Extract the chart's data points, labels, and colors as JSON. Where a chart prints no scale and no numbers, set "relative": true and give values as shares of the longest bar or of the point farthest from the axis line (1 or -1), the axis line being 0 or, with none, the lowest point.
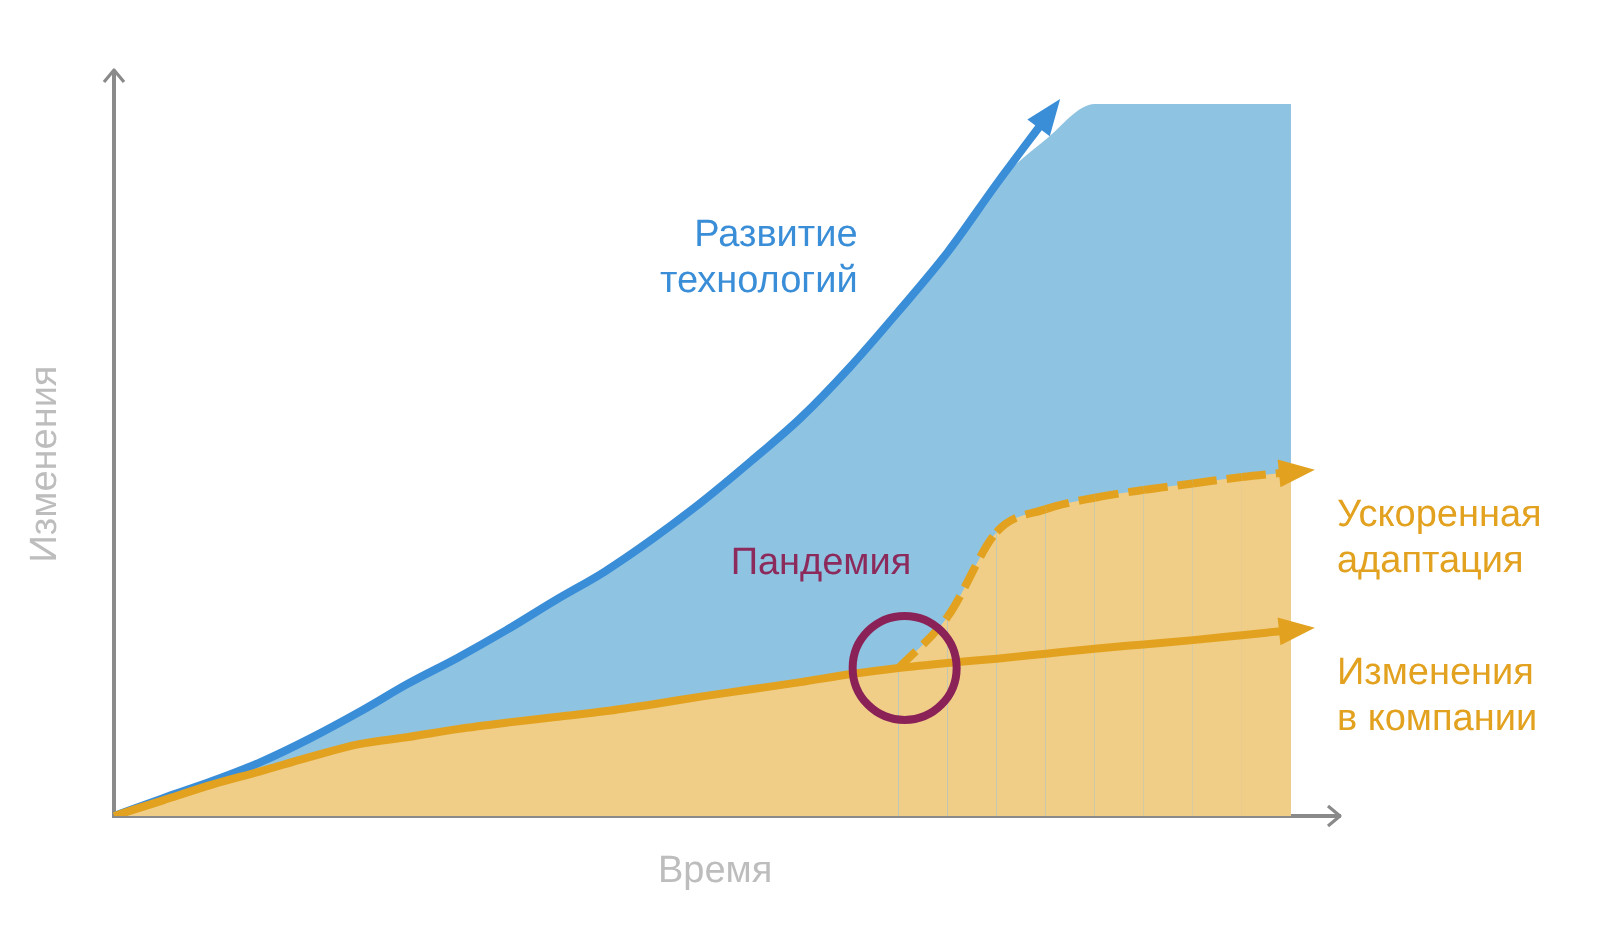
{
  "chart_data": {
    "type": "line",
    "xlabel": "Время",
    "ylabel": "Изменения",
    "relative": true,
    "legend": false,
    "grid": false,
    "marker": "none",
    "categories": [
      null,
      null,
      null,
      null,
      null,
      null,
      null,
      null,
      null,
      null,
      null,
      null,
      null,
      null,
      null,
      null,
      null,
      null,
      null,
      null,
      null,
      null,
      null,
      null,
      null,
      null
    ],
    "annotations": [
      "Пандемия"
    ],
    "series": [
      {
        "type": "area",
        "color": "#8fc3e2",
        "values": [
          0,
          0.025,
          0.049,
          0.076,
          0.109,
          0.146,
          0.186,
          0.222,
          0.261,
          0.303,
          0.343,
          0.39,
          0.442,
          0.499,
          0.559,
          0.63,
          0.709,
          0.792,
          0.888,
          0.95,
          1,
          1,
          1,
          1,
          1,
          null
        ]
      },
      {
        "type": "area",
        "color": "#f0ce88",
        "values": [
          0,
          0.022,
          0.044,
          0.063,
          0.083,
          0.101,
          0.111,
          0.122,
          0.131,
          0.139,
          0.147,
          0.157,
          0.168,
          0.178,
          0.188,
          0.199,
          0.208,
          null,
          null,
          null,
          null,
          null,
          null,
          null,
          null,
          null
        ]
      },
      {
        "name": "Развитие технологий",
        "color": "#3a8ed8",
        "values": [
          0,
          0.025,
          0.049,
          0.076,
          0.109,
          0.146,
          0.186,
          0.222,
          0.261,
          0.303,
          0.343,
          0.39,
          0.442,
          0.499,
          0.559,
          0.63,
          0.709,
          0.792,
          0.888,
          0.98,
          null,
          null,
          null,
          null,
          null,
          null
        ]
      },
      {
        "name": "Ускоренная адаптация",
        "type": "area",
        "color": "#e2a21f",
        "line_style": "dashed",
        "values": [
          null,
          null,
          null,
          null,
          null,
          null,
          null,
          null,
          null,
          null,
          null,
          null,
          null,
          null,
          null,
          null,
          0.208,
          0.28,
          0.399,
          0.431,
          0.447,
          0.458,
          0.467,
          0.476,
          0.483,
          null
        ]
      },
      {
        "name": "Изменения в компании",
        "color": "#e2a21f",
        "values": [
          0,
          0.022,
          0.044,
          0.063,
          0.083,
          0.101,
          0.111,
          0.122,
          0.131,
          0.139,
          0.147,
          0.157,
          0.168,
          0.178,
          0.188,
          0.199,
          0.208,
          0.215,
          0.221,
          0.228,
          0.235,
          0.241,
          0.247,
          0.254,
          0.261,
          null
        ]
      }
    ]
  }
}
